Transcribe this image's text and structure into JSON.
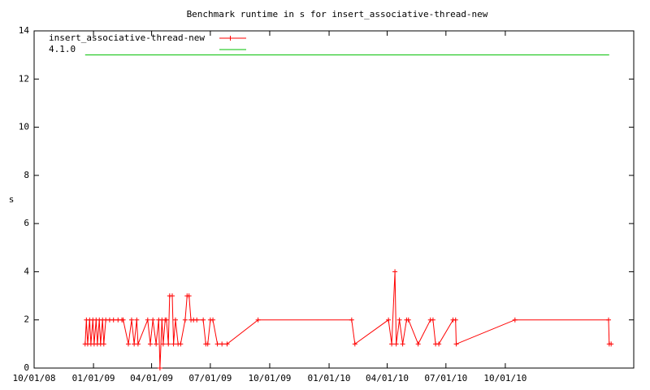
{
  "chart_data": {
    "type": "line",
    "title": "Benchmark runtime in s for insert_associative-thread-new",
    "y_label": "s",
    "xlim": [
      "2008-10-01",
      "2011-04-18"
    ],
    "xticks": [
      {
        "value": "2008-10-01",
        "label": "10/01/08"
      },
      {
        "value": "2009-01-01",
        "label": "01/01/09"
      },
      {
        "value": "2009-04-01",
        "label": "04/01/09"
      },
      {
        "value": "2009-07-01",
        "label": "07/01/09"
      },
      {
        "value": "2009-10-01",
        "label": "10/01/09"
      },
      {
        "value": "2010-01-01",
        "label": "01/01/10"
      },
      {
        "value": "2010-04-01",
        "label": "04/01/10"
      },
      {
        "value": "2010-07-01",
        "label": "07/01/10"
      },
      {
        "value": "2010-10-01",
        "label": "10/01/10"
      }
    ],
    "ylim": [
      0,
      14
    ],
    "yticks": [
      0,
      2,
      4,
      6,
      8,
      10,
      12,
      14
    ],
    "legend": "top-left",
    "series": [
      {
        "name": "insert_associative-thread-new",
        "color": "#ff0000",
        "markers": true,
        "x": [
          "2008-12-19",
          "2008-12-21",
          "2008-12-23",
          "2008-12-26",
          "2008-12-28",
          "2008-12-31",
          "2009-01-02",
          "2009-01-05",
          "2009-01-07",
          "2009-01-10",
          "2009-01-12",
          "2009-01-15",
          "2009-01-17",
          "2009-01-20",
          "2009-01-26",
          "2009-02-01",
          "2009-02-08",
          "2009-02-14",
          "2009-02-16",
          "2009-02-24",
          "2009-03-01",
          "2009-03-05",
          "2009-03-09",
          "2009-03-11",
          "2009-03-26",
          "2009-03-30",
          "2009-04-03",
          "2009-04-08",
          "2009-04-12",
          "2009-04-14",
          "2009-04-17",
          "2009-04-19",
          "2009-04-22",
          "2009-04-24",
          "2009-04-27",
          "2009-04-29",
          "2009-05-03",
          "2009-05-05",
          "2009-05-08",
          "2009-05-12",
          "2009-05-16",
          "2009-05-23",
          "2009-05-26",
          "2009-05-29",
          "2009-06-01",
          "2009-06-05",
          "2009-06-10",
          "2009-06-20",
          "2009-06-24",
          "2009-06-27",
          "2009-07-01",
          "2009-07-05",
          "2009-07-12",
          "2009-07-19",
          "2009-07-27",
          "2009-09-13",
          "2010-02-05",
          "2010-02-10",
          "2010-04-03",
          "2010-04-08",
          "2010-04-13",
          "2010-04-15",
          "2010-04-20",
          "2010-04-25",
          "2010-05-01",
          "2010-05-04",
          "2010-05-19",
          "2010-06-07",
          "2010-06-11",
          "2010-06-15",
          "2010-06-20",
          "2010-07-12",
          "2010-07-16",
          "2010-07-17",
          "2010-10-16",
          "2011-03-10",
          "2011-03-11",
          "2011-03-14"
        ],
        "values": [
          1,
          2,
          1,
          2,
          1,
          2,
          1,
          2,
          1,
          2,
          1,
          2,
          1,
          2,
          2,
          2,
          2,
          2,
          2,
          1,
          2,
          1,
          2,
          1,
          2,
          1,
          2,
          1,
          2,
          0,
          2,
          1,
          2,
          2,
          1,
          3,
          3,
          1,
          2,
          1,
          1,
          2,
          3,
          3,
          2,
          2,
          2,
          2,
          1,
          1,
          2,
          2,
          1,
          1,
          1,
          2,
          2,
          1,
          2,
          1,
          4,
          1,
          2,
          1,
          2,
          2,
          1,
          2,
          2,
          1,
          1,
          2,
          2,
          1,
          2,
          2,
          1,
          1
        ]
      },
      {
        "name": "4.1.0",
        "color": "#00c000",
        "markers": false,
        "x": [
          "2008-12-19",
          "2011-03-11"
        ],
        "values": [
          13,
          13
        ]
      }
    ]
  }
}
